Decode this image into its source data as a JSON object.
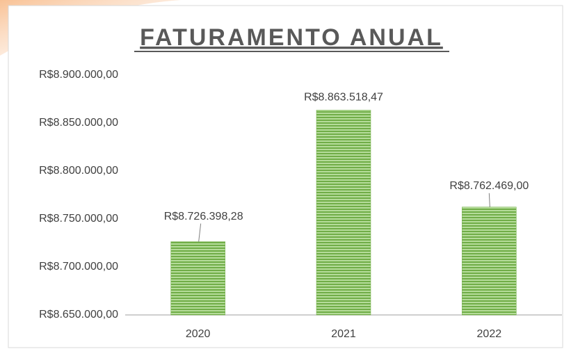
{
  "chart_data": {
    "type": "bar",
    "title": "FATURAMENTO ANUAL",
    "categories": [
      "2020",
      "2021",
      "2022"
    ],
    "values": [
      8726398.28,
      8863518.47,
      8762469.0
    ],
    "value_labels": [
      "R$8.726.398,28",
      "R$8.863.518,47",
      "R$8.762.469,00"
    ],
    "color": "#70ad47",
    "ylim": [
      8650000,
      8900000
    ],
    "yticks": [
      {
        "value": 8650000,
        "label": "R$8.650.000,00"
      },
      {
        "value": 8700000,
        "label": "R$8.700.000,00"
      },
      {
        "value": 8750000,
        "label": "R$8.750.000,00"
      },
      {
        "value": 8800000,
        "label": "R$8.800.000,00"
      },
      {
        "value": 8850000,
        "label": "R$8.850.000,00"
      },
      {
        "value": 8900000,
        "label": "R$8.900.000,00"
      }
    ],
    "grid": false
  }
}
